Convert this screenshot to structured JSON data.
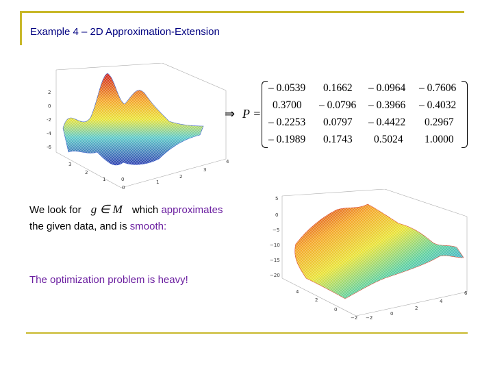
{
  "slide": {
    "title": "Example 4 – 2D Approximation-Extension"
  },
  "top_plot": {
    "z_ticks": [
      "2",
      "0",
      "-2",
      "-4",
      "-6"
    ],
    "x_ticks": [
      "0",
      "1",
      "2",
      "3",
      "4"
    ],
    "y_ticks": [
      "0",
      "1",
      "2",
      "3"
    ]
  },
  "matrix": {
    "implies": "⇒",
    "label": "P =",
    "rows": [
      [
        "– 0.0539",
        "0.1662",
        "– 0.0964",
        "– 0.7606"
      ],
      [
        "0.3700",
        "– 0.0796",
        "– 0.3966",
        "– 0.4032"
      ],
      [
        "– 0.2253",
        "0.0797",
        "– 0.4422",
        "0.2967"
      ],
      [
        "– 0.1989",
        "0.1743",
        "0.5024",
        "1.0000"
      ]
    ]
  },
  "text": {
    "line1_pre": "We look for",
    "math_expr": "g ∈ M",
    "line1_post": "which",
    "line1_accent": "approximates",
    "line2_pre": "the given data, and is",
    "line2_accent": "smooth:",
    "conclusion": "The optimization problem is heavy!"
  },
  "bottom_plot": {
    "z_ticks": [
      "5",
      "0",
      "−5",
      "−10",
      "−15",
      "−20"
    ],
    "x_ticks": [
      "−2",
      "0",
      "2",
      "4",
      "6"
    ],
    "y_ticks": [
      "−2",
      "0",
      "2",
      "4"
    ]
  },
  "colors": {
    "rule": "#c8b82a",
    "title": "#000080",
    "accent": "#6b1fa0"
  }
}
